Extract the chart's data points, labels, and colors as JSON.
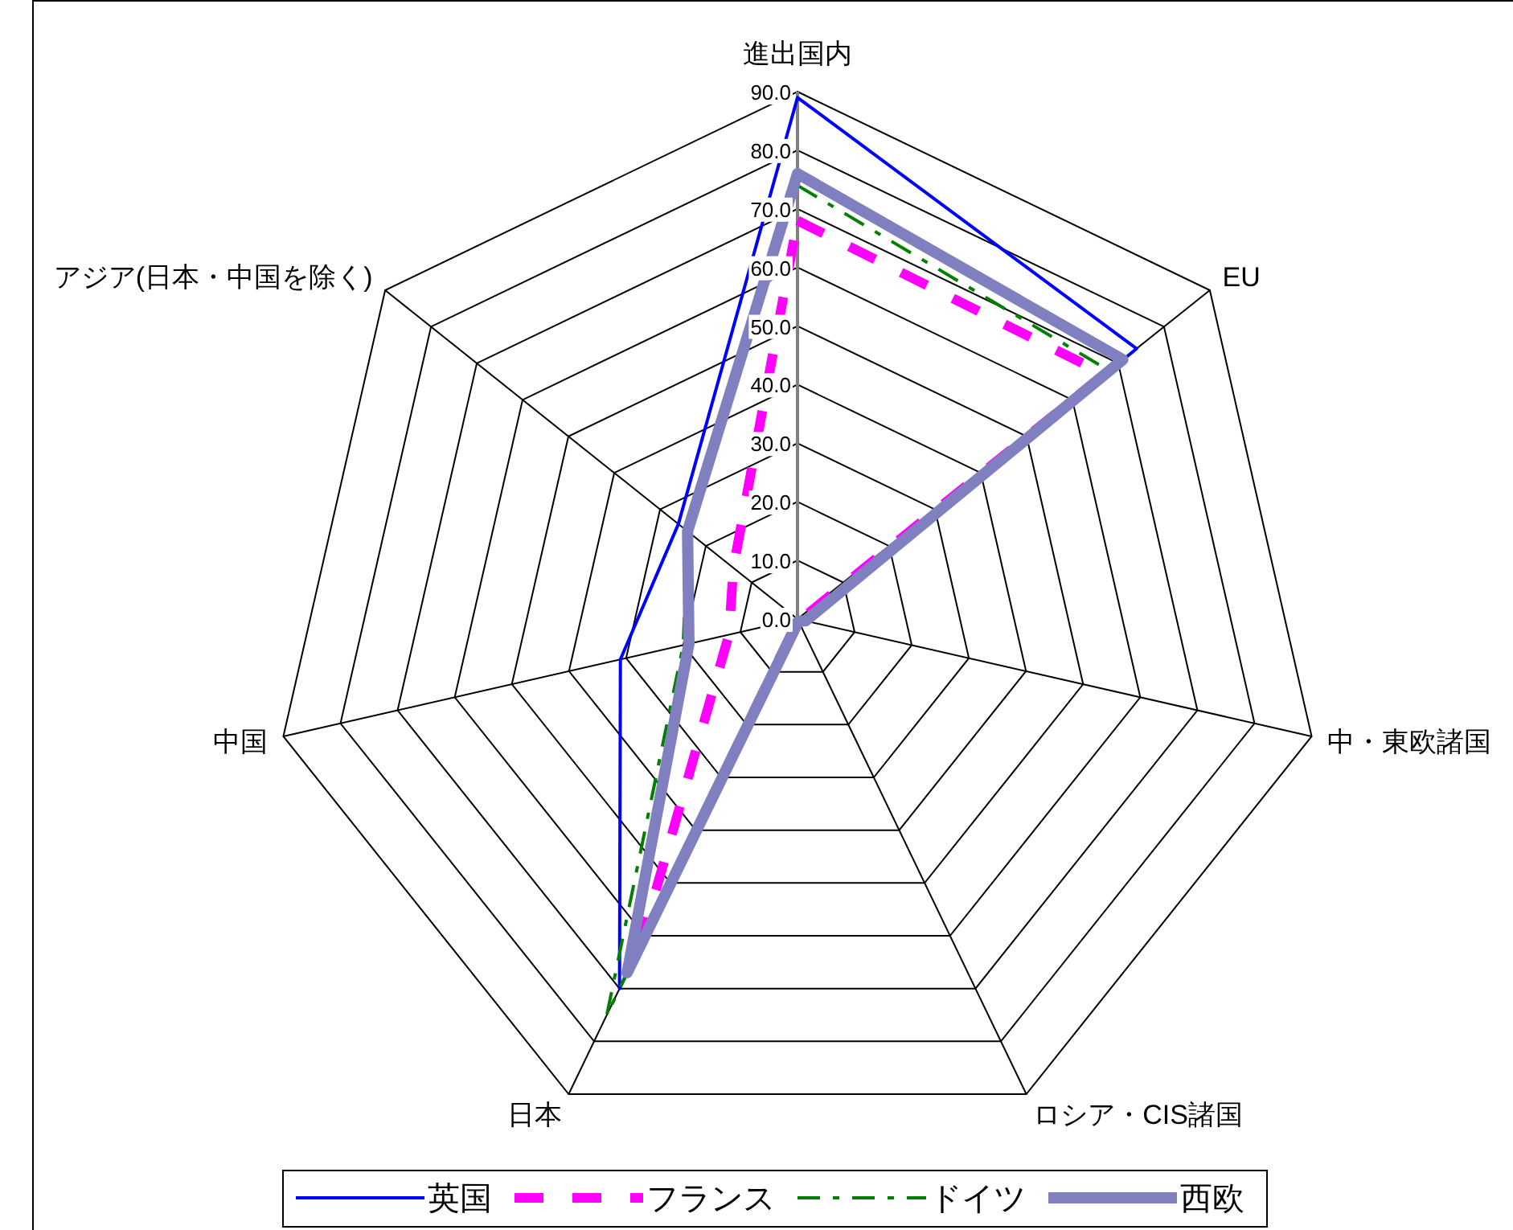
{
  "chart_data": {
    "type": "radar",
    "categories": [
      "進出国内",
      "EU",
      "中・東欧諸国",
      "ロシア・CIS諸国",
      "日本",
      "中国",
      "アジア(日本・中国を除く)"
    ],
    "series": [
      {
        "name": "英国",
        "color": "#0000ff",
        "line_style": "solid",
        "values": [
          89,
          74,
          1.6,
          0.3,
          70,
          31,
          26
        ]
      },
      {
        "name": "フランス",
        "color": "#ff00ff",
        "line_style": "dashed",
        "values": [
          68,
          67,
          0.5,
          0.2,
          62,
          12,
          14
        ]
      },
      {
        "name": "ドイツ",
        "color": "#008000",
        "line_style": "dashdot",
        "values": [
          74,
          68,
          1.3,
          0.2,
          75,
          20,
          24
        ]
      },
      {
        "name": "西欧",
        "color": "#8080c0",
        "line_style": "solid",
        "values": [
          76,
          71,
          1.4,
          0.4,
          67,
          19,
          24
        ]
      }
    ],
    "ylim": [
      0,
      90
    ],
    "yticks": [
      {
        "value": 0,
        "label": "0.0"
      },
      {
        "value": 10,
        "label": "10.0"
      },
      {
        "value": 20,
        "label": "20.0"
      },
      {
        "value": 30,
        "label": "30.0"
      },
      {
        "value": 40,
        "label": "40.0"
      },
      {
        "value": 50,
        "label": "50.0"
      },
      {
        "value": 60,
        "label": "60.0"
      },
      {
        "value": 70,
        "label": "70.0"
      },
      {
        "value": 80,
        "label": "80.0"
      },
      {
        "value": 90,
        "label": "90.0"
      }
    ],
    "grid": true,
    "legend": "bottom",
    "marker": "none"
  }
}
